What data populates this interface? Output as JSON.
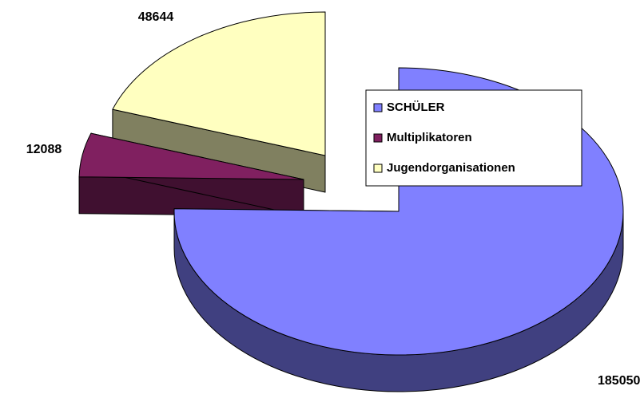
{
  "chart_data": {
    "type": "pie3d",
    "categories": [
      "SCHÜLER",
      "Multiplikatoren",
      "Jugendorganisationen"
    ],
    "values": [
      185050,
      12088,
      48644
    ],
    "colors": [
      "#8080ff",
      "#802060",
      "#ffffc0"
    ],
    "legend": "right"
  }
}
